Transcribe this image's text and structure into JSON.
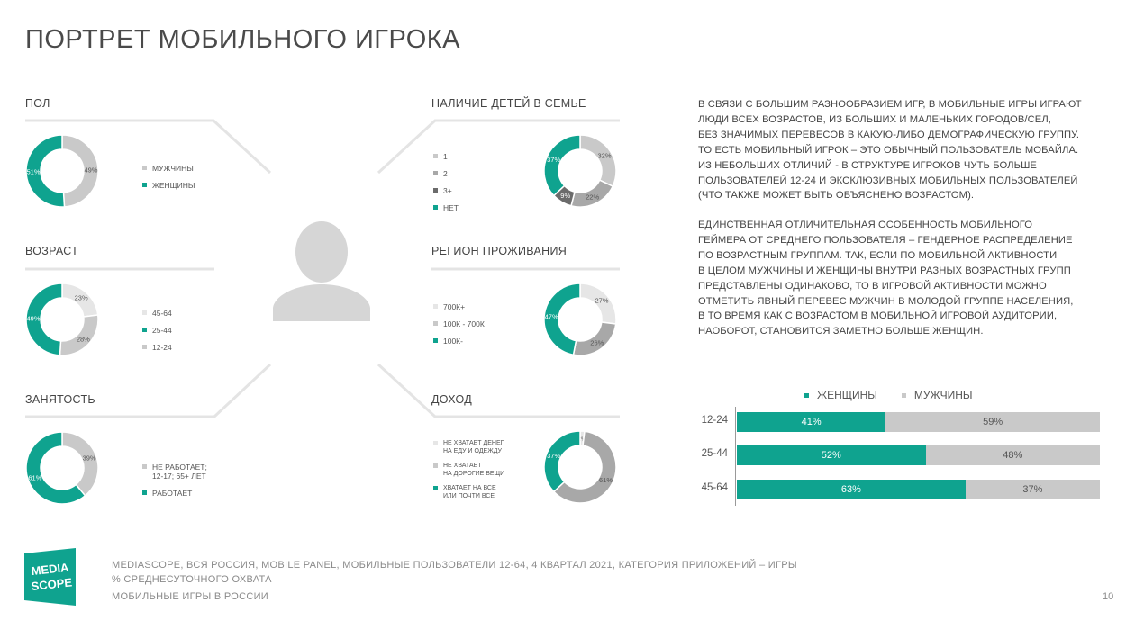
{
  "page_title": "ПОРТРЕТ МОБИЛЬНОГО ИГРОКА",
  "colors": {
    "teal": "#0fa38f",
    "light_gray": "#c9c9c9",
    "very_light_gray": "#e6e6e6",
    "mid_gray": "#a8a8a8",
    "dark_gray": "#6b6b6b",
    "deco_line": "#e4e4e4"
  },
  "sections": {
    "gender": {
      "title": "ПОЛ",
      "legend": [
        {
          "label": "МУЖЧИНЫ",
          "color": "#c9c9c9"
        },
        {
          "label": "ЖЕНЩИНЫ",
          "color": "#0fa38f"
        }
      ]
    },
    "age": {
      "title": "ВОЗРАСТ",
      "legend": [
        {
          "label": "45-64",
          "color": "#e6e6e6"
        },
        {
          "label": "25-44",
          "color": "#0fa38f"
        },
        {
          "label": "12-24",
          "color": "#c9c9c9"
        }
      ]
    },
    "employment": {
      "title": "ЗАНЯТОСТЬ",
      "legend": [
        {
          "label": "НЕ РАБОТАЕТ;\n12-17; 65+ ЛЕТ",
          "color": "#c9c9c9"
        },
        {
          "label": "РАБОТАЕТ",
          "color": "#0fa38f"
        }
      ]
    },
    "children": {
      "title": "НАЛИЧИЕ ДЕТЕЙ В СЕМЬЕ",
      "legend": [
        {
          "label": "1",
          "color": "#c9c9c9"
        },
        {
          "label": "2",
          "color": "#a8a8a8"
        },
        {
          "label": "3+",
          "color": "#6b6b6b"
        },
        {
          "label": "НЕТ",
          "color": "#0fa38f"
        }
      ]
    },
    "region": {
      "title": "РЕГИОН ПРОЖИВАНИЯ",
      "legend": [
        {
          "label": "700К+",
          "color": "#e6e6e6"
        },
        {
          "label": "100К - 700К",
          "color": "#c9c9c9"
        },
        {
          "label": "100К-",
          "color": "#0fa38f"
        }
      ]
    },
    "income": {
      "title": "ДОХОД",
      "legend": [
        {
          "label": "НЕ ХВАТАЕТ ДЕНЕГ\nНА ЕДУ И ОДЕЖДУ",
          "color": "#e6e6e6"
        },
        {
          "label": "НЕ ХВАТАЕТ\nНА ДОРОГИЕ ВЕЩИ",
          "color": "#c9c9c9"
        },
        {
          "label": "ХВАТАЕТ НА ВСЕ\nИЛИ ПОЧТИ ВСЕ",
          "color": "#0fa38f"
        }
      ]
    }
  },
  "paragraphs": {
    "p1": [
      "В СВЯЗИ С БОЛЬШИМ РАЗНООБРАЗИЕМ ИГР, В МОБИЛЬНЫЕ ИГРЫ ИГРАЮТ",
      "ЛЮДИ ВСЕХ ВОЗРАСТОВ, ИЗ БОЛЬШИХ И МАЛЕНЬКИХ ГОРОДОВ/СЕЛ,",
      "БЕЗ ЗНАЧИМЫХ ПЕРЕВЕСОВ В КАКУЮ-ЛИБО ДЕМОГРАФИЧЕСКУЮ ГРУППУ.",
      "ТО ЕСТЬ МОБИЛЬНЫЙ ИГРОК – ЭТО ОБЫЧНЫЙ ПОЛЬЗОВАТЕЛЬ МОБАЙЛА.",
      "ИЗ НЕБОЛЬШИХ ОТЛИЧИЙ - В СТРУКТУРЕ ИГРОКОВ ЧУТЬ БОЛЬШЕ",
      "ПОЛЬЗОВАТЕЛЕЙ 12-24 И ЭКСКЛЮЗИВНЫХ МОБИЛЬНЫХ ПОЛЬЗОВАТЕЛЕЙ",
      "(ЧТО ТАКЖЕ МОЖЕТ БЫТЬ ОБЪЯСНЕНО ВОЗРАСТОМ)."
    ],
    "p2": [
      "ЕДИНСТВЕННАЯ ОТЛИЧИТЕЛЬНАЯ ОСОБЕННОСТЬ МОБИЛЬНОГО",
      "ГЕЙМЕРА ОТ СРЕДНЕГО ПОЛЬЗОВАТЕЛЯ – ГЕНДЕРНОЕ РАСПРЕДЕЛЕНИЕ",
      "ПО ВОЗРАСТНЫМ ГРУППАМ. ТАК, ЕСЛИ ПО МОБИЛЬНОЙ АКТИВНОСТИ",
      "В ЦЕЛОМ МУЖЧИНЫ И ЖЕНЩИНЫ ВНУТРИ РАЗНЫХ ВОЗРАСТНЫХ ГРУПП",
      "ПРЕДСТАВЛЕНЫ ОДИНАКОВО, ТО В ИГРОВОЙ АКТИВНОСТИ МОЖНО",
      "ОТМЕТИТЬ ЯВНЫЙ ПЕРЕВЕС МУЖЧИН В МОЛОДОЙ ГРУППЕ НАСЕЛЕНИЯ,",
      "В ТО ВРЕМЯ КАК С ВОЗРАСТОМ В МОБИЛЬНОЙ ИГРОВОЙ АУДИТОРИИ,",
      "НАОБОРОТ, СТАНОВИТСЯ ЗАМЕТНО БОЛЬШЕ ЖЕНЩИН."
    ]
  },
  "bar_legend": {
    "women": "ЖЕНЩИНЫ",
    "men": "МУЖЧИНЫ"
  },
  "footer": {
    "line1": "MEDIASCOPE, ВСЯ РОССИЯ, MOBILE PANEL, МОБИЛЬНЫЕ ПОЛЬЗОВАТЕЛИ 12-64, 4 КВАРТАЛ 2021, КАТЕГОРИЯ ПРИЛОЖЕНИЙ – ИГРЫ",
    "line2": "% СРЕДНЕСУТОЧНОГО ОХВАТА",
    "line3": "МОБИЛЬНЫЕ ИГРЫ В РОССИИ",
    "page_number": "10",
    "logo_line1": "MEDIA",
    "logo_line2": "SCOPE"
  },
  "chart_data": [
    {
      "type": "pie",
      "id": "gender",
      "title": "ПОЛ",
      "slices": [
        {
          "label": "МУЖЧИНЫ",
          "value": 49,
          "color": "#c9c9c9"
        },
        {
          "label": "ЖЕНЩИНЫ",
          "value": 51,
          "color": "#0fa38f"
        }
      ]
    },
    {
      "type": "pie",
      "id": "age",
      "title": "ВОЗРАСТ",
      "slices": [
        {
          "label": "45-64",
          "value": 23,
          "color": "#e6e6e6"
        },
        {
          "label": "12-24",
          "value": 28,
          "color": "#c9c9c9"
        },
        {
          "label": "25-44",
          "value": 49,
          "color": "#0fa38f"
        }
      ]
    },
    {
      "type": "pie",
      "id": "employment",
      "title": "ЗАНЯТОСТЬ",
      "slices": [
        {
          "label": "НЕ РАБОТАЕТ; 12-17; 65+ ЛЕТ",
          "value": 39,
          "color": "#c9c9c9"
        },
        {
          "label": "РАБОТАЕТ",
          "value": 61,
          "color": "#0fa38f"
        }
      ]
    },
    {
      "type": "pie",
      "id": "children",
      "title": "НАЛИЧИЕ ДЕТЕЙ В СЕМЬЕ",
      "slices": [
        {
          "label": "1",
          "value": 32,
          "color": "#c9c9c9"
        },
        {
          "label": "2",
          "value": 22,
          "color": "#a8a8a8"
        },
        {
          "label": "3+",
          "value": 9,
          "color": "#6b6b6b"
        },
        {
          "label": "НЕТ",
          "value": 37,
          "color": "#0fa38f"
        }
      ]
    },
    {
      "type": "pie",
      "id": "region",
      "title": "РЕГИОН ПРОЖИВАНИЯ",
      "slices": [
        {
          "label": "700К+",
          "value": 27,
          "color": "#e6e6e6"
        },
        {
          "label": "100К - 700К",
          "value": 26,
          "color": "#a8a8a8"
        },
        {
          "label": "100К-",
          "value": 47,
          "color": "#0fa38f"
        }
      ]
    },
    {
      "type": "pie",
      "id": "income",
      "title": "ДОХОД",
      "slices": [
        {
          "label": "НЕ ХВАТАЕТ ДЕНЕГ НА ЕДУ И ОДЕЖДУ",
          "value": 2,
          "color": "#e6e6e6"
        },
        {
          "label": "НЕ ХВАТАЕТ НА ДОРОГИЕ ВЕЩИ",
          "value": 61,
          "color": "#a8a8a8"
        },
        {
          "label": "ХВАТАЕТ НА ВСЕ ИЛИ ПОЧТИ ВСЕ",
          "value": 37,
          "color": "#0fa38f"
        }
      ],
      "labels_shown": [
        "2%",
        "61%",
        "37%"
      ]
    },
    {
      "type": "bar",
      "id": "gender_by_age",
      "orientation": "horizontal",
      "stacked": true,
      "xlim": [
        0,
        100
      ],
      "categories": [
        "12-24",
        "25-44",
        "45-64"
      ],
      "series": [
        {
          "name": "ЖЕНЩИНЫ",
          "values": [
            41,
            52,
            63
          ],
          "color": "#0fa38f"
        },
        {
          "name": "МУЖЧИНЫ",
          "values": [
            59,
            48,
            37
          ],
          "color": "#c9c9c9"
        }
      ]
    }
  ]
}
